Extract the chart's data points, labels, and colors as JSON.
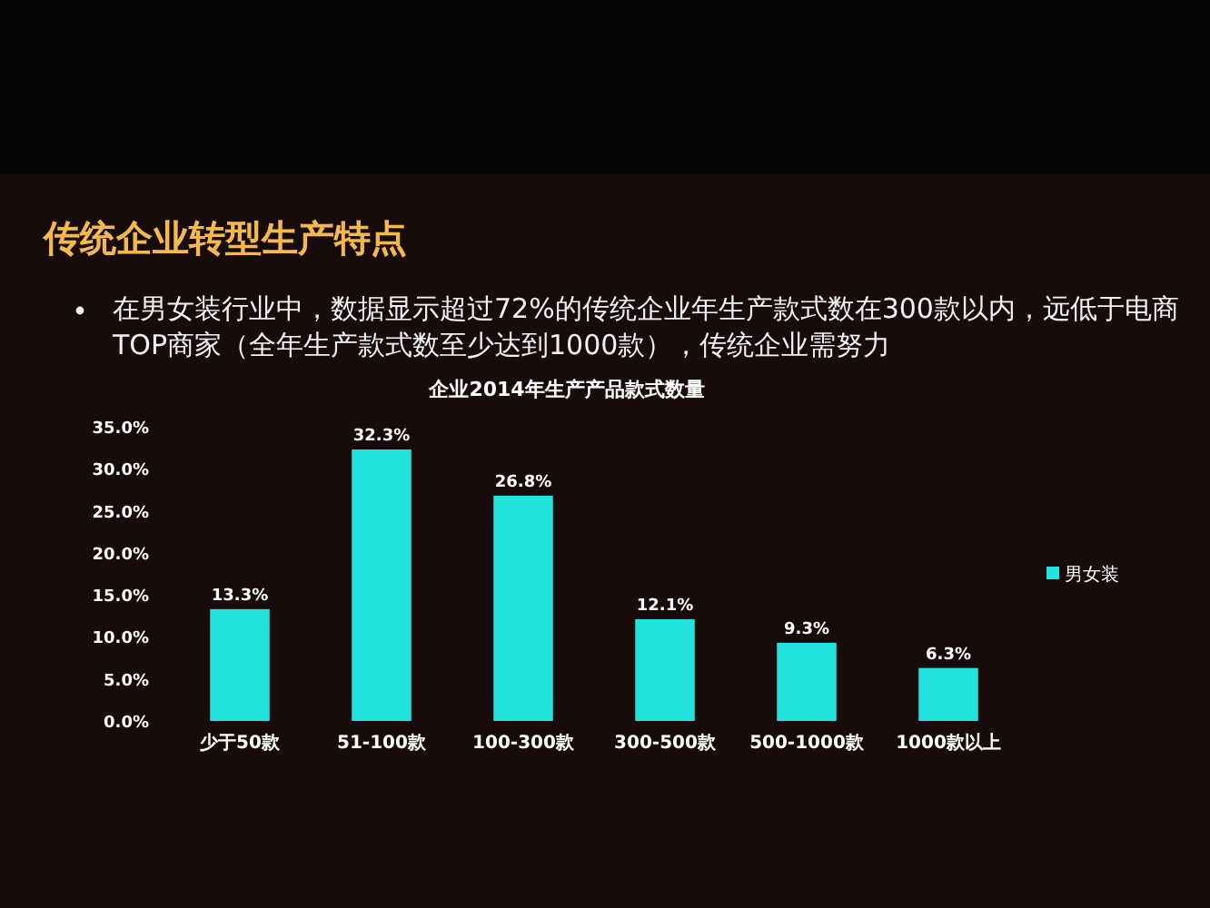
{
  "chart_data": {
    "type": "bar",
    "title": "传统企业转型生产特点",
    "subtitle": "在男女装行业中，数据显示超过72%的传统企业年生产款式数在300款以内，远低于电商TOP商家（全年生产款式数至少达到1000款），传统企业需努力",
    "annotations": [
      "企业2014年生产产品款式数量"
    ],
    "categories": [
      "少于50款",
      "51-100款",
      "100-300款",
      "300-500款",
      "500-1000款",
      "1000款以上"
    ],
    "series": [
      {
        "name": "男女装",
        "color": "#22e3de",
        "values": [
          13.3,
          32.3,
          26.8,
          12.1,
          9.3,
          6.3
        ],
        "value_labels": [
          "13.3%",
          "32.3%",
          "26.8%",
          "12.1%",
          "9.3%",
          "6.3%"
        ]
      }
    ],
    "ylim": [
      0,
      35
    ],
    "yticks": [
      {
        "value": 0,
        "label": "0.0%"
      },
      {
        "value": 5,
        "label": "5.0%"
      },
      {
        "value": 10,
        "label": "10.0%"
      },
      {
        "value": 15,
        "label": "15.0%"
      },
      {
        "value": 20,
        "label": "20.0%"
      },
      {
        "value": 25,
        "label": "25.0%"
      },
      {
        "value": 30,
        "label": "30.0%"
      },
      {
        "value": 35,
        "label": "35.0%"
      }
    ],
    "legend": "right"
  }
}
